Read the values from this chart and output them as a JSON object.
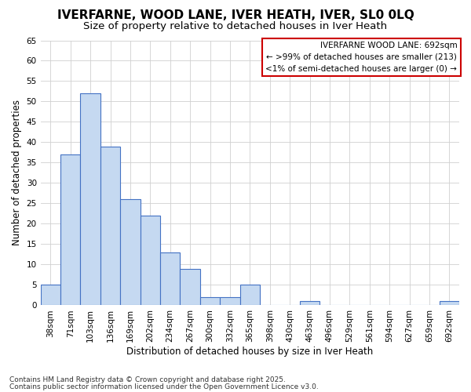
{
  "title1": "IVERFARNE, WOOD LANE, IVER HEATH, IVER, SL0 0LQ",
  "title2": "Size of property relative to detached houses in Iver Heath",
  "xlabel": "Distribution of detached houses by size in Iver Heath",
  "ylabel": "Number of detached properties",
  "categories": [
    "38sqm",
    "71sqm",
    "103sqm",
    "136sqm",
    "169sqm",
    "202sqm",
    "234sqm",
    "267sqm",
    "300sqm",
    "332sqm",
    "365sqm",
    "398sqm",
    "430sqm",
    "463sqm",
    "496sqm",
    "529sqm",
    "561sqm",
    "594sqm",
    "627sqm",
    "659sqm",
    "692sqm"
  ],
  "values": [
    5,
    37,
    52,
    39,
    26,
    22,
    13,
    9,
    2,
    2,
    5,
    0,
    0,
    1,
    0,
    0,
    0,
    0,
    0,
    0,
    1
  ],
  "bar_color": "#c5d9f1",
  "bar_edge_color": "#4472c4",
  "ylim": [
    0,
    65
  ],
  "yticks": [
    0,
    5,
    10,
    15,
    20,
    25,
    30,
    35,
    40,
    45,
    50,
    55,
    60,
    65
  ],
  "legend_title": "IVERFARNE WOOD LANE: 692sqm",
  "legend_line1": "← >99% of detached houses are smaller (213)",
  "legend_line2": "<1% of semi-detached houses are larger (0) →",
  "legend_box_color": "#ffffff",
  "legend_box_edge": "#cc0000",
  "footer1": "Contains HM Land Registry data © Crown copyright and database right 2025.",
  "footer2": "Contains public sector information licensed under the Open Government Licence v3.0.",
  "bg_color": "#ffffff",
  "grid_color": "#d0d0d0",
  "title_fontsize": 11,
  "subtitle_fontsize": 9.5,
  "axis_label_fontsize": 8.5,
  "tick_fontsize": 7.5,
  "legend_fontsize": 7.5,
  "footer_fontsize": 6.5
}
